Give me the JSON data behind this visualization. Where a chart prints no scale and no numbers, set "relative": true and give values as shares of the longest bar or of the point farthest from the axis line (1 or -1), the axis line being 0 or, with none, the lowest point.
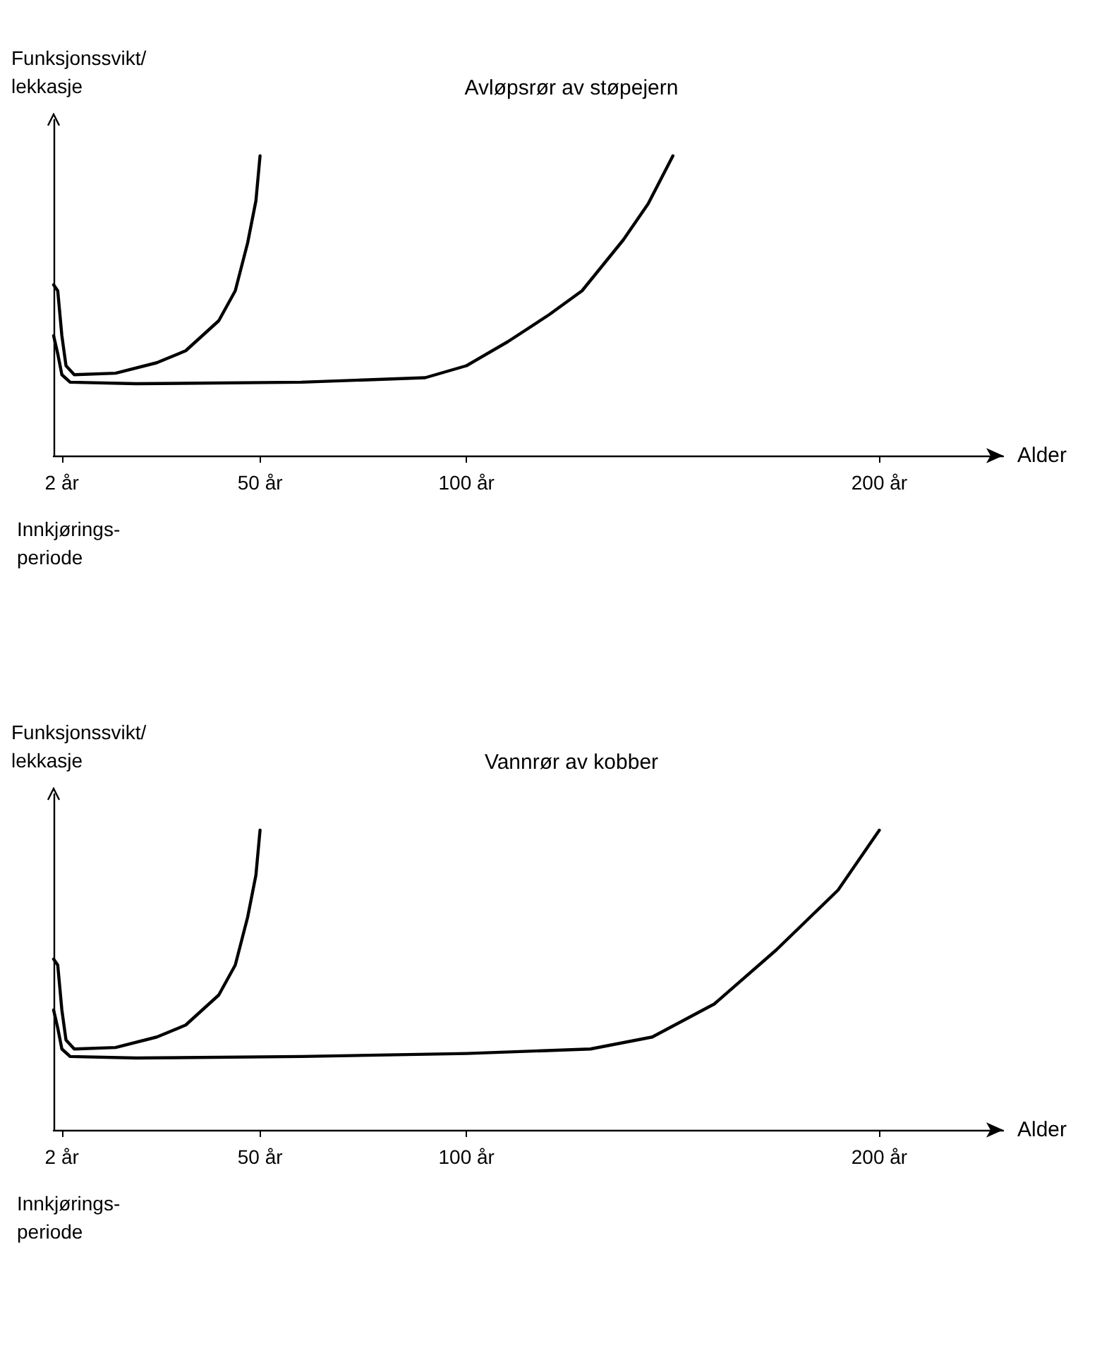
{
  "chart_data": [
    {
      "type": "line",
      "title": "Avløpsrør av støpejern",
      "ylabel": "Funksjonssvikt/\nlekkasje",
      "xlabel": "Alder",
      "relative": true,
      "xlim": [
        0,
        230
      ],
      "xticks": [
        {
          "value": 2,
          "label": "2 år"
        },
        {
          "value": 50,
          "label": "50 år"
        },
        {
          "value": 100,
          "label": "100 år"
        },
        {
          "value": 200,
          "label": "200 år"
        }
      ],
      "annotations": [
        "Innkjørings-\nperiode"
      ],
      "grid": false,
      "marker": "none",
      "line_style": "solid",
      "series": [
        {
          "color": "#000000",
          "x": [
            0,
            1,
            2,
            3,
            5,
            15,
            25,
            32,
            40,
            44,
            47,
            49,
            50
          ],
          "values": [
            0.57,
            0.55,
            0.4,
            0.3,
            0.27,
            0.275,
            0.31,
            0.35,
            0.45,
            0.55,
            0.71,
            0.85,
            1
          ]
        },
        {
          "color": "#000000",
          "x": [
            0,
            1,
            2,
            4,
            20,
            60,
            90,
            100,
            110,
            120,
            128,
            138,
            144,
            150
          ],
          "values": [
            0.4,
            0.34,
            0.27,
            0.245,
            0.24,
            0.245,
            0.26,
            0.3,
            0.38,
            0.47,
            0.55,
            0.72,
            0.84,
            1
          ]
        }
      ]
    },
    {
      "type": "line",
      "title": "Vannrør av kobber",
      "ylabel": "Funksjonssvikt/\nlekkasje",
      "xlabel": "Alder",
      "relative": true,
      "xlim": [
        0,
        230
      ],
      "xticks": [
        {
          "value": 2,
          "label": "2 år"
        },
        {
          "value": 50,
          "label": "50 år"
        },
        {
          "value": 100,
          "label": "100 år"
        },
        {
          "value": 200,
          "label": "200 år"
        }
      ],
      "annotations": [
        "Innkjørings-\nperiode"
      ],
      "grid": false,
      "marker": "none",
      "line_style": "solid",
      "series": [
        {
          "color": "#000000",
          "x": [
            0,
            1,
            2,
            3,
            5,
            15,
            25,
            32,
            40,
            44,
            47,
            49,
            50
          ],
          "values": [
            0.57,
            0.55,
            0.4,
            0.3,
            0.27,
            0.275,
            0.31,
            0.35,
            0.45,
            0.55,
            0.71,
            0.85,
            1
          ]
        },
        {
          "color": "#000000",
          "x": [
            0,
            1,
            2,
            4,
            20,
            60,
            100,
            130,
            145,
            160,
            175,
            190,
            200
          ],
          "values": [
            0.4,
            0.34,
            0.27,
            0.245,
            0.24,
            0.245,
            0.255,
            0.27,
            0.31,
            0.42,
            0.6,
            0.8,
            1
          ]
        }
      ]
    }
  ]
}
